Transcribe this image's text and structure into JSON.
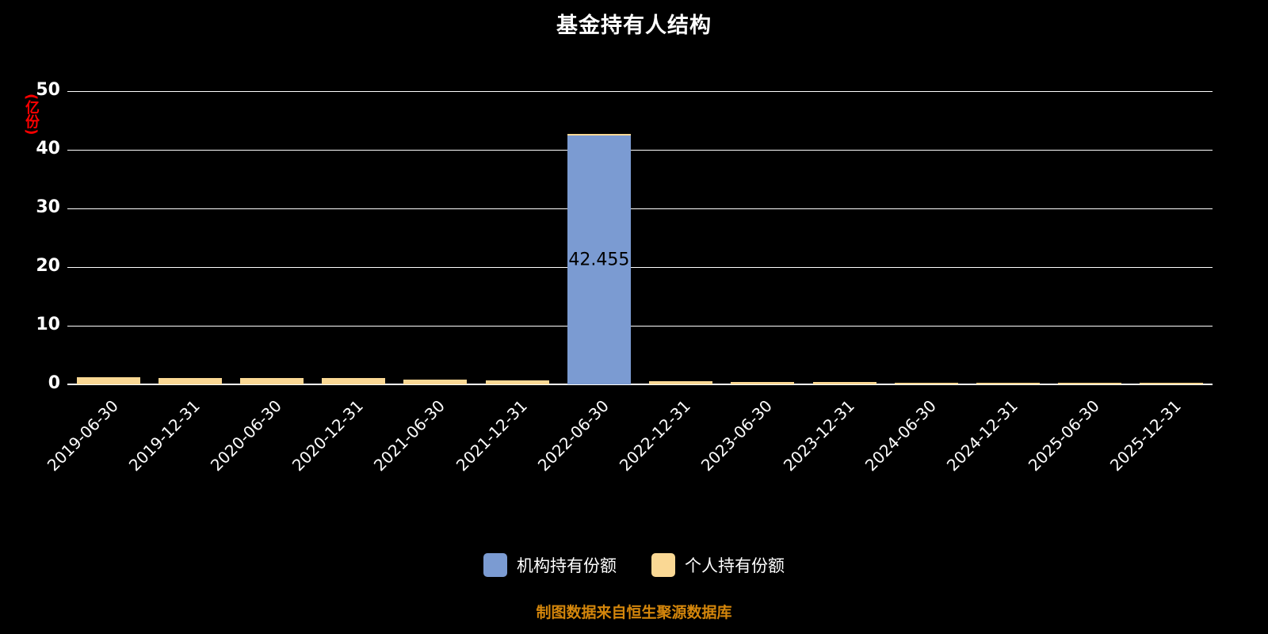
{
  "title": "基金持有人结构",
  "footer": "制图数据来自恒生聚源数据库",
  "colors": {
    "background": "#000000",
    "grid": "#FFFFFF",
    "axis_text": "#FFFFFF",
    "y_unit_label": "#FF0000",
    "footer": "#D4860B",
    "bar_label_text": "#000000"
  },
  "chart_data": {
    "type": "bar",
    "stacked": true,
    "title": "基金持有人结构",
    "ylabel": "(亿份)",
    "xlabel": "",
    "ylim": [
      0,
      50
    ],
    "ytick_step": 10,
    "grid": true,
    "legend_position": "bottom",
    "categories": [
      "2019-06-30",
      "2019-12-31",
      "2020-06-30",
      "2020-12-31",
      "2021-06-30",
      "2021-12-31",
      "2022-06-30",
      "2022-12-31",
      "2023-06-30",
      "2023-12-31",
      "2024-06-30",
      "2024-12-31",
      "2025-06-30",
      "2025-12-31"
    ],
    "series": [
      {
        "name": "机构持有份额",
        "color": "#7B9BD2",
        "values": [
          0,
          0,
          0,
          0,
          0,
          0,
          42.455,
          0,
          0,
          0,
          0,
          0,
          0,
          0
        ]
      },
      {
        "name": "个人持有份额",
        "color": "#FAD894",
        "values": [
          1.2,
          1.05,
          1.1,
          1.05,
          0.85,
          0.7,
          0.3,
          0.5,
          0.45,
          0.35,
          0.2,
          0.15,
          0.3,
          0.15
        ]
      }
    ],
    "bar_label": {
      "category_index": 6,
      "series_index": 0,
      "text": "42.455"
    }
  }
}
